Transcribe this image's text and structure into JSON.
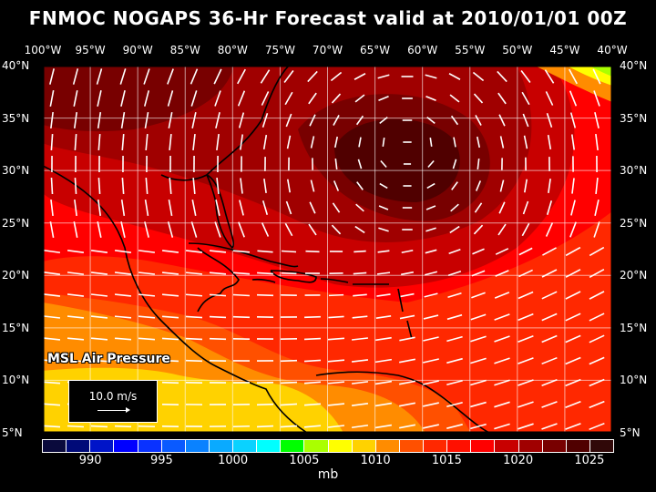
{
  "title": "FNMOC NOGAPS 36-Hr Forecast valid at 2010/01/01 00Z",
  "lon_labels": [
    "100°W",
    "95°W",
    "90°W",
    "85°W",
    "80°W",
    "75°W",
    "70°W",
    "65°W",
    "60°W",
    "55°W",
    "50°W",
    "45°W",
    "40°W"
  ],
  "lat_labels": [
    "40°N",
    "35°N",
    "30°N",
    "25°N",
    "20°N",
    "15°N",
    "10°N",
    "5°N"
  ],
  "field_label": "MSL Air Pressure",
  "reference_vector": "10.0 m/s",
  "colorbar": {
    "colors": [
      "#0a0a3c",
      "#000a78",
      "#0014c8",
      "#0000ff",
      "#0a32ff",
      "#0a5aff",
      "#0a82ff",
      "#0aaaff",
      "#0ad2ff",
      "#00ffff",
      "#00ff00",
      "#aaff00",
      "#ffff00",
      "#ffd200",
      "#ff8c00",
      "#ff5000",
      "#ff2800",
      "#ff1000",
      "#ff0000",
      "#c80000",
      "#a00000",
      "#780000",
      "#500000",
      "#300808"
    ],
    "labels": [
      "990",
      "995",
      "1000",
      "1005",
      "1010",
      "1015",
      "1020",
      "1025"
    ],
    "unit": "mb"
  }
}
